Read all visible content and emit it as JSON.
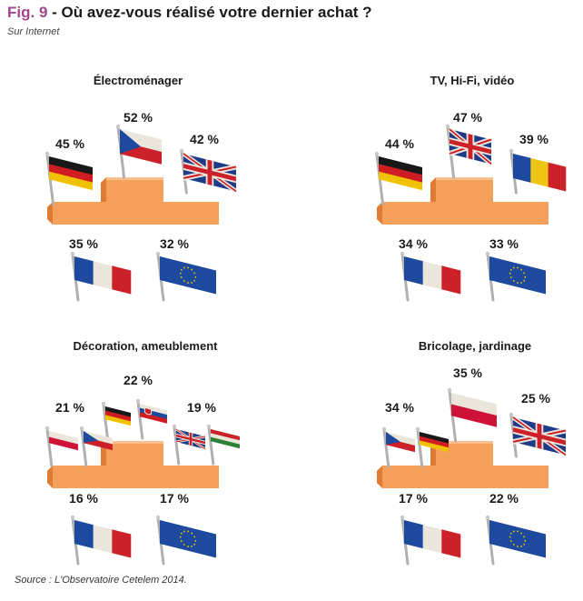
{
  "header": {
    "fig_label": "Fig. 9",
    "separator": " - ",
    "title": "Où avez-vous réalisé votre dernier achat ?",
    "subtitle": "Sur Internet"
  },
  "footer": {
    "source_label": "Source :",
    "source_text": " L'Observatoire Cetelem 2014."
  },
  "colors": {
    "podium": "#f5a05a",
    "podium_top": "#f9c08e",
    "podium_side": "#e07b34",
    "eu_blue": "#1f4fa8",
    "eu_star": "#f5d000"
  },
  "chart_data": [
    {
      "type": "bar",
      "title": "Électroménager",
      "categories": [
        "Allemagne",
        "République tchèque",
        "Royaume-Uni",
        "France",
        "Union européenne"
      ],
      "flags": [
        "germany",
        "czech",
        "uk",
        "france",
        "eu"
      ],
      "values": [
        45,
        52,
        42,
        35,
        32
      ],
      "labels": [
        "45 %",
        "52 %",
        "42 %",
        "35 %",
        "32 %"
      ]
    },
    {
      "type": "bar",
      "title": "TV, Hi-Fi, vidéo",
      "categories": [
        "Allemagne",
        "Royaume-Uni",
        "Roumanie",
        "France",
        "Union européenne"
      ],
      "flags": [
        "germany",
        "uk",
        "romania",
        "france",
        "eu"
      ],
      "values": [
        44,
        47,
        39,
        34,
        33
      ],
      "labels": [
        "44 %",
        "47 %",
        "39 %",
        "34 %",
        "33 %"
      ]
    },
    {
      "type": "bar",
      "title": "Décoration, ameublement",
      "categories": [
        "Pologne",
        "République tchèque",
        "Allemagne",
        "Slovaquie",
        "Royaume-Uni",
        "Hongrie",
        "France",
        "Union européenne"
      ],
      "flags": [
        "poland",
        "czech",
        "germany",
        "slovakia",
        "uk",
        "hungary",
        "france",
        "eu"
      ],
      "values": [
        21,
        21,
        22,
        22,
        19,
        19,
        16,
        17
      ],
      "labels": [
        "21 %",
        "22 %",
        "19 %",
        "16 %",
        "17 %"
      ]
    },
    {
      "type": "bar",
      "title": "Bricolage, jardinage",
      "categories": [
        "Pologne",
        "République tchèque",
        "Allemagne",
        "Royaume-Uni",
        "France",
        "Union européenne"
      ],
      "flags": [
        "poland",
        "czech",
        "germany",
        "uk",
        "france",
        "eu"
      ],
      "values": [
        35,
        34,
        34,
        25,
        17,
        22
      ],
      "labels": [
        "35 %",
        "34 %",
        "25 %",
        "17 %",
        "22 %"
      ]
    }
  ]
}
